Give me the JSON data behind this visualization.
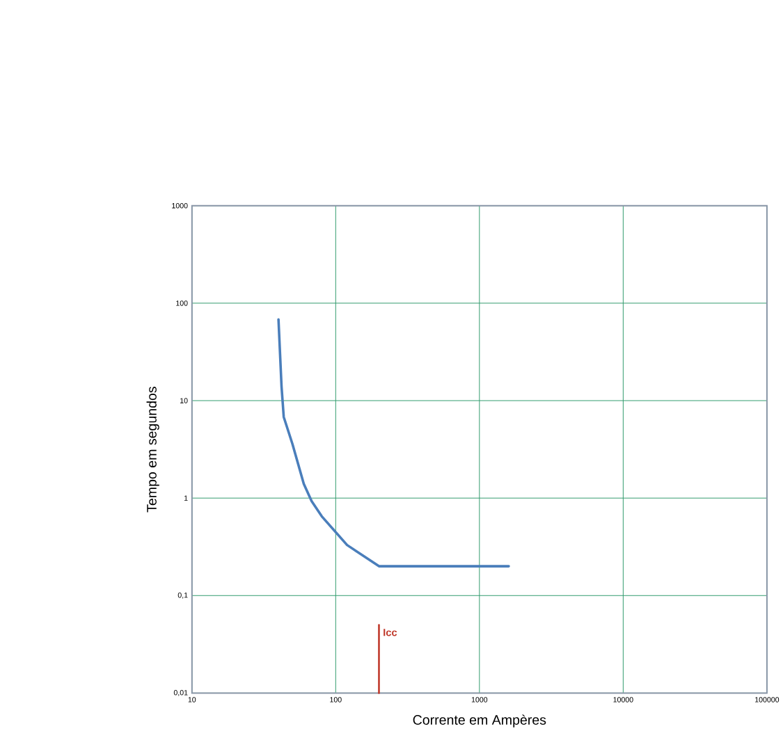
{
  "chart_data": {
    "type": "line",
    "xlabel": "Corrente em Ampères",
    "ylabel": "Tempo em segundos",
    "log": "xy",
    "grid": true,
    "marker": "none",
    "line_style": "solid",
    "xlim": [
      10,
      100000
    ],
    "ylim": [
      0.01,
      1000
    ],
    "xticks": [
      10,
      100,
      1000,
      10000,
      100000
    ],
    "yticks": [
      {
        "value": 0.01,
        "label": "0,01"
      },
      {
        "value": 0.1,
        "label": "0,1"
      },
      1,
      10,
      100,
      1000
    ],
    "series": [
      {
        "color": "#4a7ebb",
        "x": [
          40,
          42,
          43.5,
          50,
          60,
          68,
          80,
          120,
          200,
          1600
        ],
        "values": [
          68,
          14,
          6.8,
          3.6,
          1.4,
          0.93,
          0.65,
          0.33,
          0.2,
          0.2
        ]
      },
      {
        "name": "Icc",
        "color": "#c0392b",
        "x": [
          200,
          200
        ],
        "values": [
          0.01,
          0.05
        ]
      }
    ]
  }
}
